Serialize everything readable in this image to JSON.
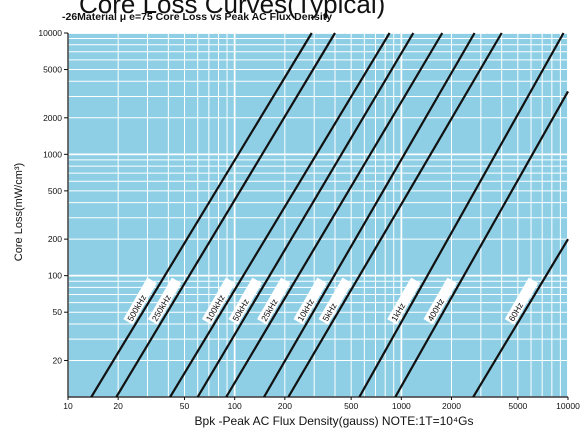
{
  "chart_data": {
    "type": "line",
    "title": "Core Loss Curves(Typical)",
    "subtitle": "-26Material  μ e=75 Core Loss vs Peak AC Flux Density",
    "ylabel": "Core Loss(mW/cm³)",
    "xlabel": "Bpk -Peak AC Flux Density(gauss)  NOTE:1T=10⁴Gs",
    "x_scale": "log",
    "y_scale": "log",
    "xlim": [
      10,
      10000
    ],
    "ylim": [
      10,
      10000
    ],
    "x_ticks": [
      10,
      20,
      50,
      100,
      200,
      500,
      1000,
      2000,
      5000,
      10000
    ],
    "x_tick_labels": [
      "10",
      "20",
      "50",
      "100",
      "200",
      "500",
      "1000",
      "2000",
      "5000",
      "10000"
    ],
    "y_ticks": [
      20,
      50,
      100,
      200,
      500,
      1000,
      2000,
      5000,
      10000
    ],
    "y_tick_labels": [
      "20",
      "50",
      "100",
      "200",
      "500",
      "1000",
      "2000",
      "5000",
      "10000"
    ],
    "grid": true,
    "background_color": "#8ecfe6",
    "line_color": "#111111",
    "series": [
      {
        "name": "500kHz",
        "points": [
          [
            13.8,
            10
          ],
          [
            290,
            10000
          ]
        ]
      },
      {
        "name": "250kHz",
        "points": [
          [
            19.5,
            10
          ],
          [
            400,
            10000
          ]
        ]
      },
      {
        "name": "100kHz",
        "points": [
          [
            41,
            10
          ],
          [
            850,
            10000
          ]
        ]
      },
      {
        "name": "50kHz",
        "points": [
          [
            60,
            10
          ],
          [
            1180,
            10000
          ]
        ]
      },
      {
        "name": "25kHz",
        "points": [
          [
            89,
            10
          ],
          [
            1760,
            10000
          ]
        ]
      },
      {
        "name": "10kHz",
        "points": [
          [
            150,
            10
          ],
          [
            2750,
            10000
          ]
        ]
      },
      {
        "name": "5kHz",
        "points": [
          [
            210,
            10
          ],
          [
            4000,
            10000
          ]
        ]
      },
      {
        "name": "1kHz",
        "points": [
          [
            560,
            10
          ],
          [
            9400,
            10000
          ]
        ]
      },
      {
        "name": "400Hz",
        "points": [
          [
            920,
            10
          ],
          [
            10000,
            3300
          ]
        ]
      },
      {
        "name": "60Hz",
        "points": [
          [
            2700,
            10
          ],
          [
            10000,
            200
          ]
        ]
      }
    ]
  }
}
